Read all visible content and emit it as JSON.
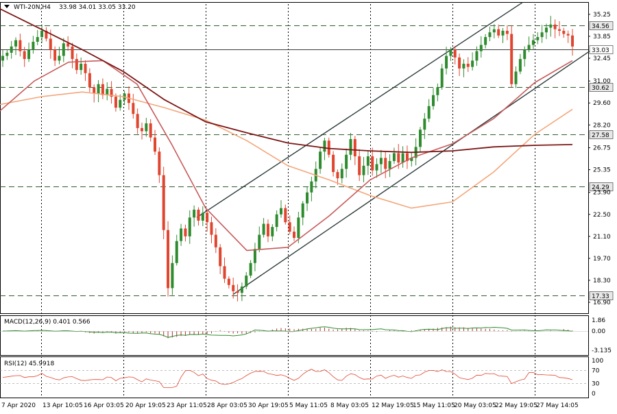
{
  "chart_data": {
    "type": "candlestick",
    "header": {
      "symbol": "WTI-20N,H4",
      "ohlc": "33.98 34.01 33.05 33.20"
    },
    "colors": {
      "up": "#2e8b2e",
      "down": "#e0452f",
      "grid": "#000000",
      "ma_dark": "#7b1414",
      "ma_mid": "#c75a5a",
      "ma_light": "#f4a67a",
      "channel": "#2b3a3a",
      "hline": "#2f5b2f",
      "macd_hist": "#b03030",
      "macd_signal": "#2e8b2e",
      "rsi": "#e0452f"
    },
    "y_axis": {
      "ticks": [
        "35.25",
        "33.85",
        "32.45",
        "31.00",
        "29.60",
        "28.20",
        "26.75",
        "25.35",
        "23.90",
        "22.50",
        "21.10",
        "19.70",
        "18.30",
        "16.90"
      ],
      "range": [
        16.2,
        35.9
      ]
    },
    "x_axis": {
      "ticks": [
        "7 Apr 2020",
        "13 Apr 10:05",
        "16 Apr 03:05",
        "20 Apr 19:05",
        "23 Apr 11:05",
        "28 Apr 03:05",
        "30 Apr 19:05",
        "5 May 11:05",
        "8 May 03:05",
        "12 May 19:05",
        "15 May 11:05",
        "20 May 03:05",
        "22 May 19:05",
        "27 May 14:05"
      ]
    },
    "price_levels": [
      {
        "label": "34.56",
        "value": 34.56
      },
      {
        "label": "33.03",
        "value": 33.03
      },
      {
        "label": "30.62",
        "value": 30.62
      },
      {
        "label": "27.58",
        "value": 27.58
      },
      {
        "label": "24.29",
        "value": 24.29
      },
      {
        "label": "17.33",
        "value": 17.33
      }
    ],
    "close_series": [
      32.6,
      32.8,
      33.2,
      33.6,
      32.9,
      32.4,
      33.0,
      33.5,
      33.8,
      34.2,
      33.7,
      33.0,
      32.3,
      32.6,
      33.4,
      33.2,
      32.4,
      31.7,
      32.1,
      31.5,
      30.6,
      30.2,
      30.8,
      30.1,
      30.5,
      30.0,
      29.3,
      29.8,
      30.2,
      29.6,
      28.9,
      28.0,
      27.8,
      28.3,
      27.4,
      26.5,
      25.0,
      21.5,
      17.8,
      19.4,
      20.8,
      21.6,
      21.1,
      22.3,
      22.8,
      22.1,
      22.6,
      22.0,
      21.2,
      20.4,
      19.2,
      18.4,
      18.0,
      17.6,
      17.5,
      17.9,
      18.6,
      19.4,
      20.3,
      21.2,
      21.9,
      21.1,
      21.7,
      22.5,
      22.9,
      22.0,
      21.4,
      21.0,
      22.3,
      23.2,
      23.9,
      24.6,
      25.4,
      26.5,
      27.2,
      26.3,
      25.2,
      24.8,
      25.4,
      26.3,
      27.3,
      26.2,
      25.0,
      25.6,
      26.2,
      25.3,
      25.7,
      26.1,
      25.4,
      25.9,
      26.4,
      25.8,
      26.4,
      25.9,
      26.1,
      26.8,
      27.9,
      28.6,
      29.4,
      30.1,
      30.6,
      31.8,
      32.6,
      33.0,
      32.5,
      31.8,
      32.1,
      31.9,
      32.3,
      32.9,
      33.3,
      33.8,
      34.1,
      34.3,
      33.9,
      34.2,
      34.0,
      30.8,
      31.6,
      32.4,
      33.0,
      33.3,
      33.6,
      33.8,
      34.1,
      34.4,
      34.6,
      34.3,
      34.2,
      34.0,
      33.9,
      33.2
    ],
    "ma200": {
      "x": [
        0,
        60,
        120,
        180,
        240,
        300,
        360,
        420,
        480,
        540,
        600,
        660,
        720,
        780,
        835
      ],
      "y": [
        35.6,
        34.3,
        33.0,
        31.6,
        29.8,
        28.4,
        27.7,
        27.05,
        26.7,
        26.55,
        26.45,
        26.55,
        26.8,
        26.9,
        26.95
      ]
    },
    "ma100": {
      "x": [
        0,
        60,
        120,
        180,
        240,
        300,
        360,
        420,
        480,
        540,
        600,
        660,
        720,
        780,
        835
      ],
      "y": [
        29.5,
        30.0,
        30.3,
        30.0,
        29.3,
        28.5,
        27.2,
        25.6,
        24.7,
        23.7,
        22.9,
        23.3,
        25.2,
        27.6,
        29.2
      ]
    },
    "ma50": {
      "x": [
        0,
        50,
        100,
        150,
        200,
        250,
        300,
        360,
        420,
        480,
        540,
        600,
        660,
        720,
        780,
        835
      ],
      "y": [
        29.1,
        31.0,
        32.2,
        32.3,
        30.8,
        27.0,
        22.9,
        20.2,
        20.4,
        22.4,
        24.7,
        26.1,
        27.0,
        28.6,
        30.9,
        32.3
      ]
    },
    "channel_lines": [
      {
        "x1": 287,
        "y1": 22.3,
        "x2": 762,
        "y2": 36.0
      },
      {
        "x1": 340,
        "y1": 17.4,
        "x2": 860,
        "y2": 32.9
      }
    ],
    "vertical_marks": [
      60,
      180,
      300,
      420,
      540,
      660,
      780
    ],
    "macd": {
      "label": "MACD(12,26,9) 0.401 0.566",
      "ticks": [
        "1.86",
        "0.00",
        "-3.135"
      ]
    },
    "rsi": {
      "label": "RSI(12) 45.9918",
      "ticks": [
        "100",
        "70",
        "30",
        "0"
      ]
    }
  }
}
